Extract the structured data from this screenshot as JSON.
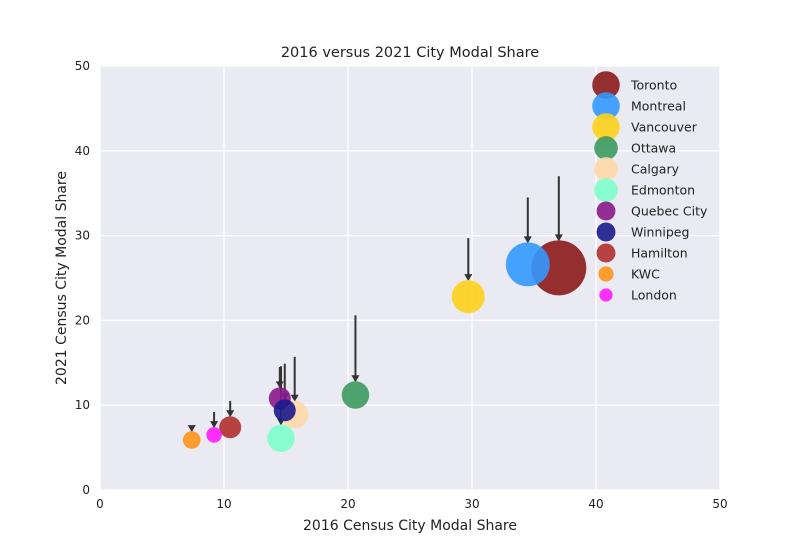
{
  "chart_data": {
    "type": "scatter",
    "title": "2016 versus 2021 City Modal Share",
    "xlabel": "2016 Census City Modal Share",
    "ylabel": "2021 Census City Modal Share",
    "xlim": [
      0,
      50
    ],
    "ylim": [
      0,
      50
    ],
    "xticks": [
      "0",
      "10",
      "20",
      "30",
      "40",
      "50"
    ],
    "yticks": [
      "0",
      "10",
      "20",
      "30",
      "40",
      "50"
    ],
    "grid": true,
    "legend_position": "top-right",
    "series": [
      {
        "name": "Toronto",
        "x": 37.0,
        "y": 26.2,
        "y2016": 37.0,
        "color": "#8b1a1a",
        "size": 5
      },
      {
        "name": "Montreal",
        "x": 34.5,
        "y": 26.6,
        "y2016": 34.5,
        "color": "#3399ff",
        "size": 4
      },
      {
        "name": "Vancouver",
        "x": 29.7,
        "y": 22.8,
        "y2016": 29.7,
        "color": "#ffd21a",
        "size": 3
      },
      {
        "name": "Ottawa",
        "x": 20.6,
        "y": 11.2,
        "y2016": 20.6,
        "color": "#3d9a5f",
        "size": 2.5
      },
      {
        "name": "Calgary",
        "x": 15.7,
        "y": 8.9,
        "y2016": 15.7,
        "color": "#ffd8a8",
        "size": 2.5
      },
      {
        "name": "Edmonton",
        "x": 14.6,
        "y": 6.1,
        "y2016": 14.6,
        "color": "#80ffcc",
        "size": 2.5
      },
      {
        "name": "Quebec City",
        "x": 14.5,
        "y": 10.8,
        "y2016": 14.5,
        "color": "#8b1a8b",
        "size": 2
      },
      {
        "name": "Winnipeg",
        "x": 14.9,
        "y": 9.4,
        "y2016": 14.9,
        "color": "#1a1a8b",
        "size": 2
      },
      {
        "name": "Hamilton",
        "x": 10.5,
        "y": 7.4,
        "y2016": 10.5,
        "color": "#b22f2f",
        "size": 2
      },
      {
        "name": "KWC",
        "x": 7.4,
        "y": 5.9,
        "y2016": 7.4,
        "color": "#ff9519",
        "size": 1.6
      },
      {
        "name": "London",
        "x": 9.2,
        "y": 6.5,
        "y2016": 9.2,
        "color": "#ff19ff",
        "size": 1.4
      }
    ]
  }
}
